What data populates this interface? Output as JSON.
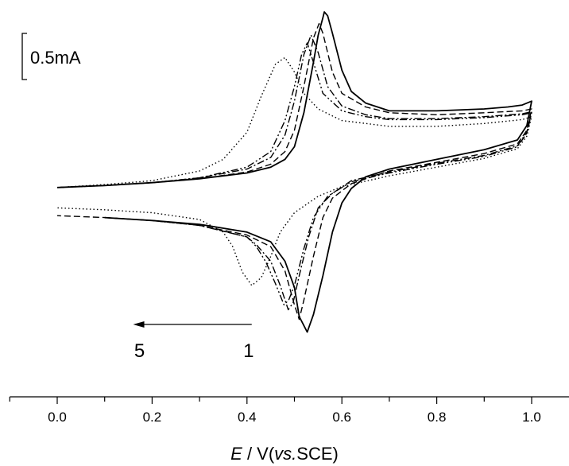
{
  "chart_data": {
    "type": "line",
    "xlabel_prefix": "E",
    "xlabel_mid": " / V(",
    "xlabel_italic": "vs.",
    "xlabel_suffix": "SCE)",
    "ylabel": "",
    "xlim": [
      -0.1,
      1.1
    ],
    "x_ticks": [
      "0.0",
      "0.2",
      "0.4",
      "0.6",
      "0.8",
      "1.0"
    ],
    "x_tick_values": [
      0.0,
      0.2,
      0.4,
      0.6,
      0.8,
      1.0
    ],
    "y_axis_shown": false,
    "grid": false,
    "scale_bar": {
      "label": "0.5mA",
      "value_mA": 0.5
    },
    "annotation": {
      "arrow_from_label": "1",
      "arrow_to_label": "5",
      "arrow_from_x": 0.41,
      "arrow_to_x": 0.16
    },
    "series": [
      {
        "style": "solid",
        "anodic_peak": {
          "E": 0.563,
          "i_mA": 1.82
        },
        "cathodic_peak": {
          "E": 0.527,
          "i_mA": -1.48
        },
        "x": [
          0.0,
          0.1,
          0.2,
          0.3,
          0.4,
          0.45,
          0.48,
          0.5,
          0.52,
          0.54,
          0.55,
          0.56,
          0.563,
          0.57,
          0.58,
          0.6,
          0.62,
          0.65,
          0.7,
          0.8,
          0.9,
          0.95,
          0.98,
          1.0,
          0.99,
          0.97,
          0.9,
          0.8,
          0.7,
          0.65,
          0.62,
          0.6,
          0.58,
          0.56,
          0.54,
          0.527,
          0.51,
          0.5,
          0.48,
          0.45,
          0.4,
          0.3,
          0.2,
          0.1
        ],
        "y": [
          0.01,
          0.03,
          0.06,
          0.1,
          0.16,
          0.22,
          0.3,
          0.43,
          0.78,
          1.3,
          1.58,
          1.76,
          1.82,
          1.78,
          1.6,
          1.22,
          1.0,
          0.88,
          0.8,
          0.8,
          0.82,
          0.84,
          0.86,
          0.9,
          0.65,
          0.5,
          0.4,
          0.3,
          0.2,
          0.12,
          0.0,
          -0.15,
          -0.45,
          -0.9,
          -1.3,
          -1.48,
          -1.32,
          -1.02,
          -0.75,
          -0.55,
          -0.45,
          -0.37,
          -0.33,
          -0.3
        ]
      },
      {
        "style": "dashed",
        "anodic_peak": {
          "E": 0.552,
          "i_mA": 1.7
        },
        "cathodic_peak": {
          "E": 0.51,
          "i_mA": -1.35
        },
        "x": [
          0.0,
          0.1,
          0.2,
          0.3,
          0.4,
          0.45,
          0.48,
          0.5,
          0.52,
          0.54,
          0.552,
          0.56,
          0.58,
          0.6,
          0.65,
          0.7,
          0.8,
          0.9,
          0.98,
          1.0,
          0.99,
          0.97,
          0.9,
          0.8,
          0.7,
          0.62,
          0.58,
          0.56,
          0.54,
          0.52,
          0.51,
          0.5,
          0.48,
          0.45,
          0.4,
          0.3,
          0.2,
          0.1,
          0.0
        ],
        "y": [
          0.01,
          0.03,
          0.06,
          0.1,
          0.17,
          0.25,
          0.38,
          0.6,
          1.05,
          1.55,
          1.7,
          1.6,
          1.2,
          0.98,
          0.84,
          0.78,
          0.76,
          0.78,
          0.8,
          0.82,
          0.6,
          0.46,
          0.36,
          0.27,
          0.18,
          0.05,
          -0.1,
          -0.3,
          -0.7,
          -1.15,
          -1.35,
          -1.2,
          -0.85,
          -0.6,
          -0.48,
          -0.38,
          -0.33,
          -0.3,
          -0.28
        ]
      },
      {
        "style": "dash-dot",
        "anodic_peak": {
          "E": 0.535,
          "i_mA": 1.58
        },
        "cathodic_peak": {
          "E": 0.487,
          "i_mA": -1.25
        },
        "x": [
          0.0,
          0.1,
          0.2,
          0.3,
          0.4,
          0.45,
          0.48,
          0.5,
          0.52,
          0.535,
          0.55,
          0.57,
          0.6,
          0.65,
          0.7,
          0.8,
          0.9,
          0.98,
          1.0,
          0.99,
          0.97,
          0.9,
          0.8,
          0.7,
          0.62,
          0.58,
          0.55,
          0.53,
          0.51,
          0.497,
          0.487,
          0.47,
          0.45,
          0.42,
          0.4,
          0.3,
          0.2,
          0.1
        ],
        "y": [
          0.01,
          0.03,
          0.06,
          0.11,
          0.2,
          0.32,
          0.55,
          0.9,
          1.38,
          1.58,
          1.4,
          1.05,
          0.85,
          0.76,
          0.72,
          0.72,
          0.74,
          0.77,
          0.79,
          0.58,
          0.44,
          0.34,
          0.26,
          0.17,
          0.08,
          -0.05,
          -0.2,
          -0.5,
          -0.9,
          -1.18,
          -1.25,
          -1.0,
          -0.75,
          -0.58,
          -0.5,
          -0.38,
          -0.33,
          -0.3
        ]
      },
      {
        "style": "dash-dot-dot",
        "anodic_peak": {
          "E": 0.527,
          "i_mA": 1.5
        },
        "cathodic_peak": {
          "E": 0.478,
          "i_mA": -1.2
        },
        "x": [
          0.0,
          0.1,
          0.2,
          0.3,
          0.4,
          0.45,
          0.48,
          0.5,
          0.515,
          0.527,
          0.54,
          0.56,
          0.6,
          0.65,
          0.7,
          0.8,
          0.9,
          0.98,
          1.0,
          0.99,
          0.97,
          0.9,
          0.8,
          0.7,
          0.62,
          0.57,
          0.54,
          0.52,
          0.5,
          0.488,
          0.478,
          0.46,
          0.44,
          0.42,
          0.4,
          0.3,
          0.2,
          0.1
        ],
        "y": [
          0.01,
          0.03,
          0.06,
          0.11,
          0.22,
          0.38,
          0.7,
          1.05,
          1.38,
          1.5,
          1.3,
          0.98,
          0.8,
          0.74,
          0.71,
          0.71,
          0.73,
          0.76,
          0.78,
          0.57,
          0.43,
          0.33,
          0.25,
          0.16,
          0.07,
          -0.08,
          -0.3,
          -0.62,
          -1.0,
          -1.15,
          -1.2,
          -0.98,
          -0.76,
          -0.6,
          -0.5,
          -0.38,
          -0.33,
          -0.3
        ]
      },
      {
        "style": "dotted",
        "anodic_peak": {
          "E": 0.48,
          "i_mA": 1.35
        },
        "cathodic_peak": {
          "E": 0.41,
          "i_mA": -1.0
        },
        "x": [
          0.0,
          0.1,
          0.2,
          0.3,
          0.35,
          0.4,
          0.43,
          0.46,
          0.48,
          0.5,
          0.52,
          0.55,
          0.6,
          0.7,
          0.8,
          0.9,
          0.98,
          1.0,
          0.99,
          0.97,
          0.9,
          0.8,
          0.7,
          0.6,
          0.55,
          0.5,
          0.47,
          0.45,
          0.43,
          0.41,
          0.39,
          0.37,
          0.35,
          0.3,
          0.2,
          0.1,
          0.0
        ],
        "y": [
          0.01,
          0.04,
          0.08,
          0.18,
          0.3,
          0.58,
          0.95,
          1.28,
          1.35,
          1.2,
          0.98,
          0.82,
          0.7,
          0.64,
          0.64,
          0.67,
          0.71,
          0.74,
          0.54,
          0.41,
          0.31,
          0.22,
          0.13,
          0.02,
          -0.08,
          -0.25,
          -0.45,
          -0.7,
          -0.92,
          -1.0,
          -0.86,
          -0.6,
          -0.45,
          -0.32,
          -0.25,
          -0.22,
          -0.2
        ]
      }
    ]
  }
}
